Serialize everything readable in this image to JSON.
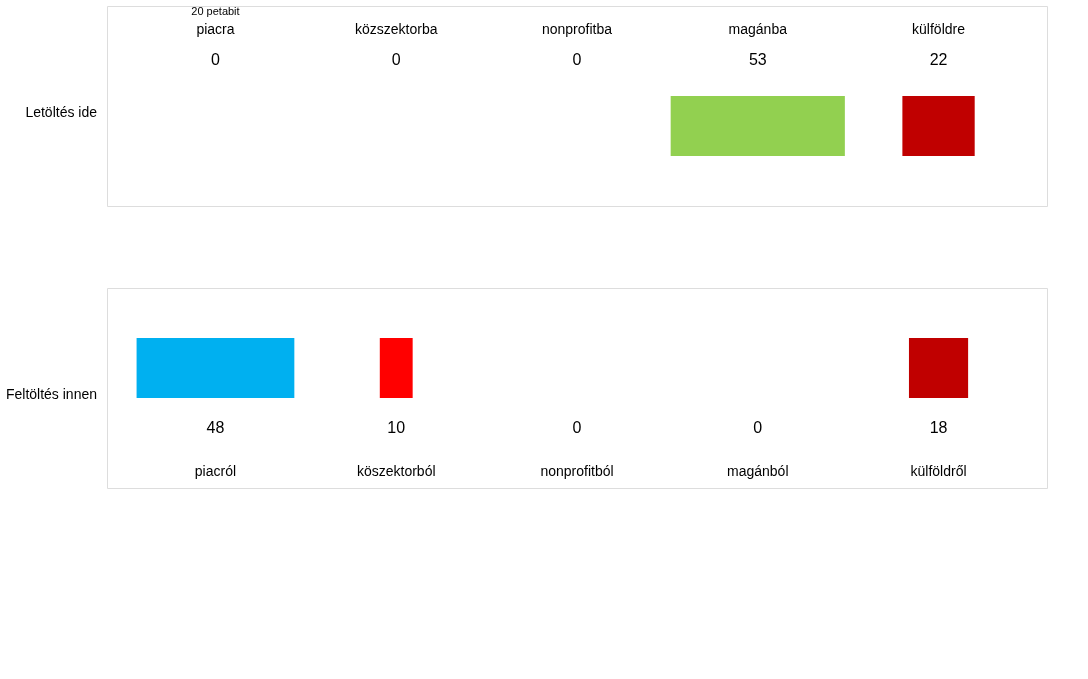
{
  "chart_data": [
    {
      "type": "other",
      "title": "Letöltés ide",
      "annotations": [
        "20 petabit"
      ],
      "categories": [
        "piacra",
        "közszektorba",
        "nonprofitba",
        "magánba",
        "külföldre"
      ],
      "values": [
        0,
        0,
        0,
        53,
        22
      ],
      "colors": [
        "#00b0f0",
        "#ff0000",
        "#bfbfbf",
        "#92d050",
        "#c00000"
      ],
      "data_labels": true
    },
    {
      "type": "other",
      "title": "Feltöltés innen",
      "categories": [
        "piacról",
        "köszektorból",
        "nonprofitból",
        "magánból",
        "külföldről"
      ],
      "values": [
        48,
        10,
        0,
        0,
        18
      ],
      "colors": [
        "#00b0f0",
        "#ff0000",
        "#bfbfbf",
        "#92d050",
        "#c00000"
      ],
      "data_labels": true
    }
  ]
}
